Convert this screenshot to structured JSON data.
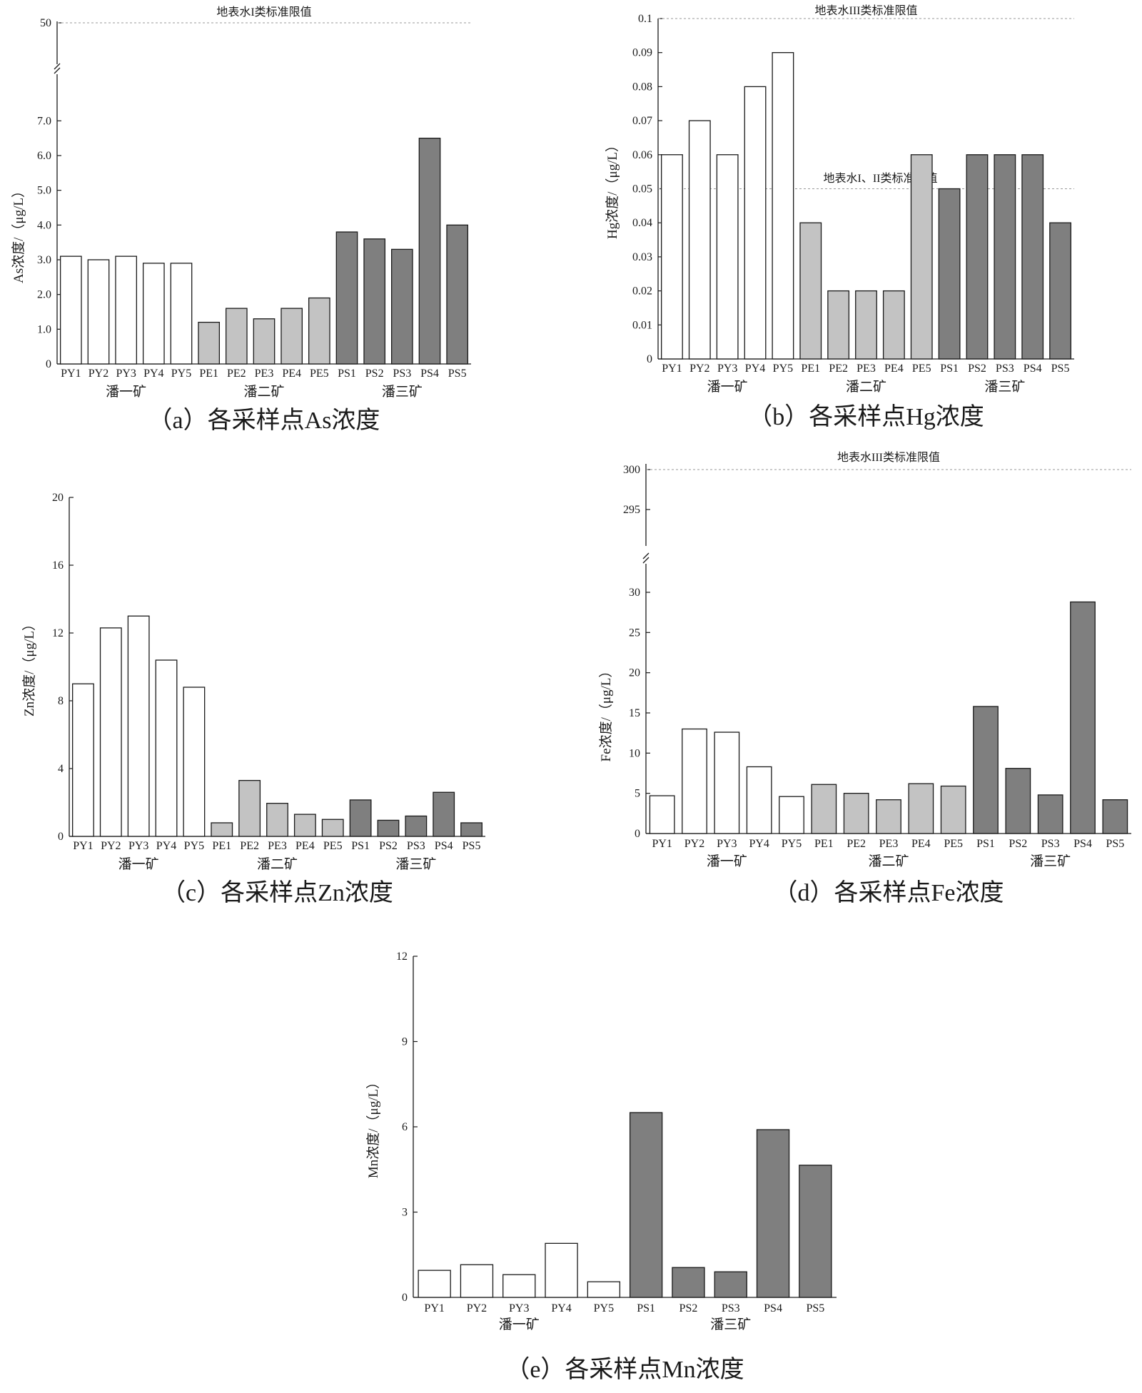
{
  "colors": {
    "PY": "#ffffff",
    "PE": "#c3c3c3",
    "PS": "#7f7f7f",
    "axis": "#1a1a1a"
  },
  "chart_data": [
    {
      "id": "a",
      "type": "bar",
      "caption": "（a）各采样点As浓度",
      "ylabel": "As浓度/（μg/L）",
      "categories": [
        "PY1",
        "PY2",
        "PY3",
        "PY4",
        "PY5",
        "PE1",
        "PE2",
        "PE3",
        "PE4",
        "PE5",
        "PS1",
        "PS2",
        "PS3",
        "PS4",
        "PS5"
      ],
      "values": [
        3.1,
        3.0,
        3.1,
        2.9,
        2.9,
        1.2,
        1.6,
        1.3,
        1.6,
        1.9,
        3.8,
        3.6,
        3.3,
        6.5,
        4.0
      ],
      "groups": [
        {
          "label": "潘一矿",
          "key": "PY"
        },
        {
          "label": "潘二矿",
          "key": "PE"
        },
        {
          "label": "潘三矿",
          "key": "PS"
        }
      ],
      "ylim": [
        0,
        7.5
      ],
      "yticks": [
        "0",
        "1.0",
        "2.0",
        "3.0",
        "4.0",
        "5.0",
        "6.0",
        "7.0"
      ],
      "broken_axis": true,
      "upper_ticks": [
        "50"
      ],
      "limit_lines": [
        {
          "label": "地表水I类标准限值",
          "value": 50
        }
      ]
    },
    {
      "id": "b",
      "type": "bar",
      "caption": "（b）各采样点Hg浓度",
      "ylabel": "Hg浓度/（μg/L）",
      "categories": [
        "PY1",
        "PY2",
        "PY3",
        "PY4",
        "PY5",
        "PE1",
        "PE2",
        "PE3",
        "PE4",
        "PE5",
        "PS1",
        "PS2",
        "PS3",
        "PS4",
        "PS5"
      ],
      "values": [
        0.06,
        0.07,
        0.06,
        0.08,
        0.09,
        0.04,
        0.02,
        0.02,
        0.02,
        0.06,
        0.05,
        0.06,
        0.06,
        0.06,
        0.04
      ],
      "groups": [
        {
          "label": "潘一矿",
          "key": "PY"
        },
        {
          "label": "潘二矿",
          "key": "PE"
        },
        {
          "label": "潘三矿",
          "key": "PS"
        }
      ],
      "ylim": [
        0,
        0.1
      ],
      "yticks": [
        "0",
        "0.01",
        "0.02",
        "0.03",
        "0.04",
        "0.05",
        "0.06",
        "0.07",
        "0.08",
        "0.09",
        "0.1"
      ],
      "broken_axis": false,
      "limit_lines": [
        {
          "label": "地表水III类标准限值",
          "value": 0.1
        },
        {
          "label": "地表水I、II类标准限值",
          "value": 0.05
        }
      ]
    },
    {
      "id": "c",
      "type": "bar",
      "caption": "（c）各采样点Zn浓度",
      "ylabel": "Zn浓度/（μg/L）",
      "categories": [
        "PY1",
        "PY2",
        "PY3",
        "PY4",
        "PY5",
        "PE1",
        "PE2",
        "PE3",
        "PE4",
        "PE5",
        "PS1",
        "PS2",
        "PS3",
        "PS4",
        "PS5"
      ],
      "values": [
        9.0,
        12.3,
        13.0,
        10.4,
        8.8,
        0.8,
        3.3,
        1.95,
        1.3,
        1.0,
        2.15,
        0.95,
        1.2,
        2.6,
        0.8
      ],
      "groups": [
        {
          "label": "潘一矿",
          "key": "PY"
        },
        {
          "label": "潘二矿",
          "key": "PE"
        },
        {
          "label": "潘三矿",
          "key": "PS"
        }
      ],
      "ylim": [
        0,
        20
      ],
      "yticks": [
        "0",
        "4",
        "8",
        "12",
        "16",
        "20"
      ],
      "broken_axis": false,
      "limit_lines": []
    },
    {
      "id": "d",
      "type": "bar",
      "caption": "（d）各采样点Fe浓度",
      "ylabel": "Fe浓度/（μg/L）",
      "categories": [
        "PY1",
        "PY2",
        "PY3",
        "PY4",
        "PY5",
        "PE1",
        "PE2",
        "PE3",
        "PE4",
        "PE5",
        "PS1",
        "PS2",
        "PS3",
        "PS4",
        "PS5"
      ],
      "values": [
        4.7,
        13.0,
        12.6,
        8.3,
        4.6,
        6.1,
        5.0,
        4.2,
        6.2,
        5.9,
        15.8,
        8.1,
        4.8,
        28.8,
        4.2
      ],
      "groups": [
        {
          "label": "潘一矿",
          "key": "PY"
        },
        {
          "label": "潘二矿",
          "key": "PE"
        },
        {
          "label": "潘三矿",
          "key": "PS"
        }
      ],
      "ylim": [
        0,
        30
      ],
      "yticks": [
        "0",
        "5",
        "10",
        "15",
        "20",
        "25",
        "30"
      ],
      "broken_axis": true,
      "upper_ticks": [
        "295",
        "300"
      ],
      "limit_lines": [
        {
          "label": "地表水III类标准限值",
          "value": 300
        }
      ]
    },
    {
      "id": "e",
      "type": "bar",
      "caption": "（e）各采样点Mn浓度",
      "ylabel": "Mn浓度/（μg/L）",
      "categories": [
        "PY1",
        "PY2",
        "PY3",
        "PY4",
        "PY5",
        "PS1",
        "PS2",
        "PS3",
        "PS4",
        "PS5"
      ],
      "values": [
        0.95,
        1.15,
        0.8,
        1.9,
        0.55,
        6.5,
        1.05,
        0.9,
        5.9,
        4.65
      ],
      "groups": [
        {
          "label": "潘一矿",
          "key": "PY"
        },
        {
          "label": "潘三矿",
          "key": "PS"
        }
      ],
      "ylim": [
        0,
        12
      ],
      "yticks": [
        "0",
        "3",
        "6",
        "9",
        "12"
      ],
      "broken_axis": false,
      "limit_lines": []
    }
  ]
}
